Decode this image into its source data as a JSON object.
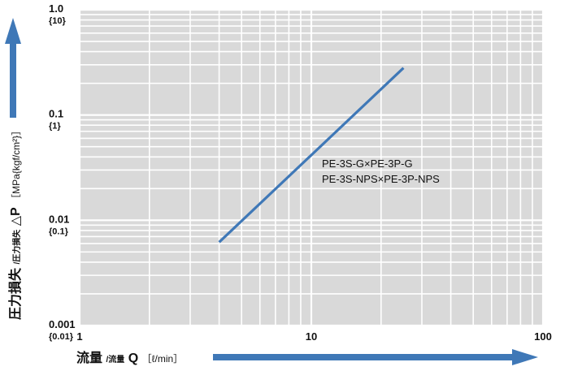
{
  "colors": {
    "plot_background": "#d9d9d9",
    "grid": "#ffffff",
    "series": "#3f78b7",
    "arrow": "#3f78b7",
    "text": "#111111"
  },
  "chart_data": {
    "type": "line",
    "x_scale": "log",
    "y_scale": "log",
    "xlim": [
      1,
      100
    ],
    "ylim": [
      0.001,
      1
    ],
    "grid": true,
    "x_ticks": [
      {
        "value": 1,
        "label": "1"
      },
      {
        "value": 10,
        "label": "10"
      },
      {
        "value": 100,
        "label": "100"
      }
    ],
    "y_ticks": [
      {
        "value": 1,
        "label": "1.0",
        "sub_label": "{10}"
      },
      {
        "value": 0.1,
        "label": "0.1",
        "sub_label": "{1}"
      },
      {
        "value": 0.01,
        "label": "0.01",
        "sub_label": "{0.1}"
      },
      {
        "value": 0.001,
        "label": "0.001",
        "sub_label": "{0.01}"
      }
    ],
    "xlabel": {
      "main": "流量",
      "sub": "/流量",
      "symbol": "Q",
      "unit": "［ℓ/min］"
    },
    "ylabel": {
      "main": "圧力損失",
      "sub": "/圧力損失",
      "symbol": "△P",
      "unit": "［MPa{kgf/cm²}］"
    },
    "series": [
      {
        "x": [
          4,
          25
        ],
        "y": [
          0.0062,
          0.28
        ]
      }
    ],
    "annotations": [
      "PE-3S-G×PE-3P-G",
      "PE-3S-NPS×PE-3P-NPS"
    ]
  }
}
